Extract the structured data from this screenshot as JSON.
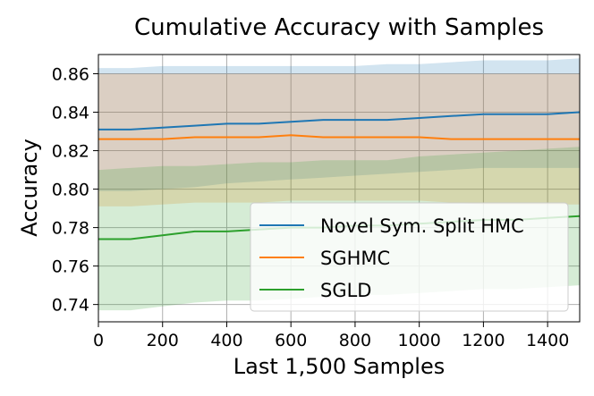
{
  "chart_data": {
    "type": "line",
    "title": "Cumulative Accuracy with Samples",
    "xlabel": "Last 1,500 Samples",
    "ylabel": "Accuracy",
    "xlim": [
      0,
      1500
    ],
    "ylim": [
      0.731,
      0.87
    ],
    "xticks": [
      0,
      200,
      400,
      600,
      800,
      1000,
      1200,
      1400
    ],
    "yticks": [
      0.74,
      0.76,
      0.78,
      0.8,
      0.82,
      0.84,
      0.86
    ],
    "xtick_labels": [
      "0",
      "200",
      "400",
      "600",
      "800",
      "1000",
      "1200",
      "1400"
    ],
    "ytick_labels": [
      "0.74",
      "0.76",
      "0.78",
      "0.80",
      "0.82",
      "0.84",
      "0.86"
    ],
    "grid": true,
    "legend_position": "lower-right",
    "x": [
      0,
      100,
      200,
      300,
      400,
      500,
      600,
      700,
      800,
      900,
      1000,
      1100,
      1200,
      1300,
      1400,
      1500
    ],
    "series": [
      {
        "name": "Novel Sym. Split HMC",
        "color": "#1f77b4",
        "values": [
          0.831,
          0.831,
          0.832,
          0.833,
          0.834,
          0.834,
          0.835,
          0.836,
          0.836,
          0.836,
          0.837,
          0.838,
          0.839,
          0.839,
          0.839,
          0.84
        ],
        "upper": [
          0.863,
          0.863,
          0.864,
          0.864,
          0.864,
          0.864,
          0.864,
          0.864,
          0.864,
          0.865,
          0.865,
          0.866,
          0.867,
          0.867,
          0.867,
          0.868
        ],
        "lower": [
          0.799,
          0.799,
          0.8,
          0.801,
          0.803,
          0.804,
          0.805,
          0.806,
          0.807,
          0.808,
          0.809,
          0.81,
          0.811,
          0.811,
          0.811,
          0.811
        ]
      },
      {
        "name": "SGHMC",
        "color": "#ff7f0e",
        "values": [
          0.826,
          0.826,
          0.826,
          0.827,
          0.827,
          0.827,
          0.828,
          0.827,
          0.827,
          0.827,
          0.827,
          0.826,
          0.826,
          0.826,
          0.826,
          0.826
        ],
        "upper": [
          0.86,
          0.86,
          0.86,
          0.86,
          0.86,
          0.86,
          0.86,
          0.86,
          0.86,
          0.86,
          0.86,
          0.86,
          0.86,
          0.86,
          0.86,
          0.86
        ],
        "lower": [
          0.791,
          0.791,
          0.792,
          0.793,
          0.793,
          0.793,
          0.794,
          0.794,
          0.794,
          0.794,
          0.794,
          0.793,
          0.792,
          0.792,
          0.792,
          0.792
        ]
      },
      {
        "name": "SGLD",
        "color": "#2ca02c",
        "values": [
          0.774,
          0.774,
          0.776,
          0.778,
          0.778,
          0.779,
          0.78,
          0.78,
          0.781,
          0.781,
          0.782,
          0.783,
          0.784,
          0.784,
          0.785,
          0.786
        ],
        "upper": [
          0.81,
          0.811,
          0.812,
          0.812,
          0.813,
          0.814,
          0.814,
          0.815,
          0.815,
          0.815,
          0.817,
          0.818,
          0.819,
          0.82,
          0.821,
          0.822
        ],
        "lower": [
          0.737,
          0.737,
          0.739,
          0.741,
          0.742,
          0.742,
          0.743,
          0.744,
          0.745,
          0.745,
          0.746,
          0.747,
          0.748,
          0.748,
          0.749,
          0.75
        ]
      }
    ]
  }
}
